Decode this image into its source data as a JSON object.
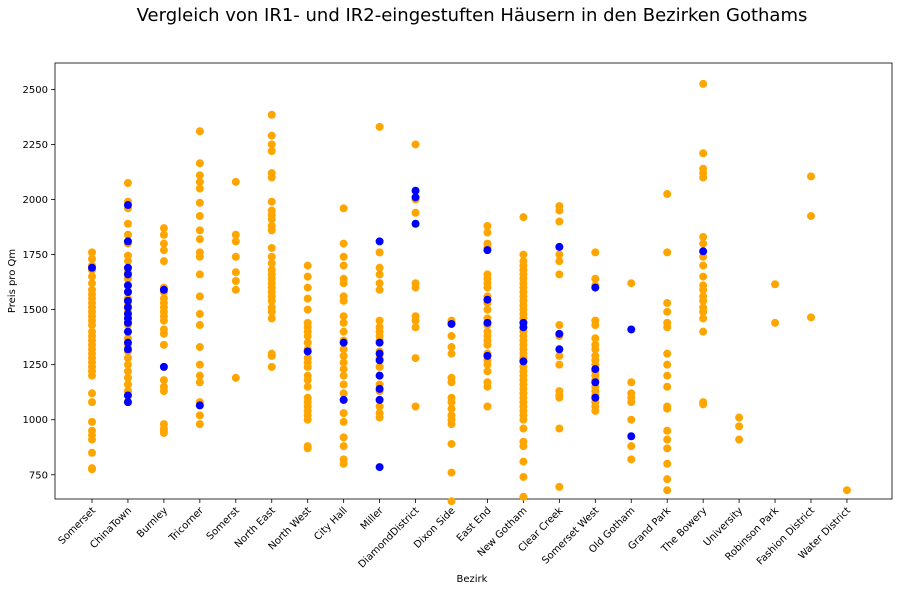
{
  "chart_data": {
    "type": "scatter",
    "title": "Vergleich von IR1- und IR2-eingestuften Häusern in den Bezirken Gothams",
    "xlabel": "Bezirk",
    "ylabel": "Preis pro Qm",
    "ylim": [
      640,
      2620
    ],
    "yticks": [
      750,
      1000,
      1250,
      1500,
      1750,
      2000,
      2250,
      2500
    ],
    "grid": false,
    "categories": [
      "Somerset",
      "ChinaTown",
      "Burnley",
      "Tricorner",
      "Somerst",
      "North East",
      "North West",
      "City Hall",
      "Miller",
      "DiamondDistrict",
      "Dixon Side",
      "East End",
      "New Gotham",
      "Clear Creek",
      "Somerset West",
      "Old Gotham",
      "Grand Park",
      "The Bowery",
      "University",
      "Robinson Park",
      "Fashion District",
      "Water District"
    ],
    "series": [
      {
        "name": "IR1",
        "color": "#ffa500",
        "points": [
          [
            "Somerset",
            [
              1760,
              1730,
              1700,
              1680,
              1650,
              1620,
              1590,
              1570,
              1550,
              1530,
              1510,
              1490,
              1470,
              1450,
              1430,
              1400,
              1380,
              1360,
              1340,
              1320,
              1300,
              1280,
              1260,
              1240,
              1220,
              1200,
              1120,
              1080,
              990,
              950,
              930,
              910,
              850,
              780,
              775
            ]
          ],
          [
            "ChinaTown",
            [
              2075,
              1990,
              1960,
              1890,
              1840,
              1800,
              1745,
              1720,
              1690,
              1670,
              1640,
              1610,
              1580,
              1550,
              1520,
              1490,
              1460,
              1430,
              1400,
              1370,
              1340,
              1310,
              1280,
              1250,
              1220,
              1190,
              1160,
              1130,
              1080
            ]
          ],
          [
            "Burnley",
            [
              1870,
              1840,
              1800,
              1770,
              1720,
              1600,
              1580,
              1550,
              1530,
              1510,
              1490,
              1470,
              1450,
              1410,
              1390,
              1340,
              1180,
              1150,
              1130,
              980,
              960,
              950,
              940
            ]
          ],
          [
            "Tricorner",
            [
              2310,
              2165,
              2110,
              2080,
              2050,
              1985,
              1925,
              1860,
              1820,
              1760,
              1740,
              1660,
              1560,
              1480,
              1430,
              1330,
              1250,
              1200,
              1170,
              1080,
              1020,
              980
            ]
          ],
          [
            "Somerst",
            [
              2080,
              1840,
              1810,
              1740,
              1670,
              1630,
              1590,
              1190
            ]
          ],
          [
            "North East",
            [
              2385,
              2290,
              2250,
              2220,
              2120,
              2100,
              1990,
              1950,
              1930,
              1910,
              1880,
              1860,
              1780,
              1740,
              1710,
              1680,
              1660,
              1640,
              1620,
              1600,
              1580,
              1560,
              1540,
              1510,
              1490,
              1460,
              1300,
              1290,
              1240
            ]
          ],
          [
            "North West",
            [
              1700,
              1650,
              1600,
              1550,
              1500,
              1440,
              1420,
              1400,
              1380,
              1350,
              1320,
              1280,
              1260,
              1240,
              1200,
              1180,
              1150,
              1100,
              1080,
              1060,
              1040,
              1020,
              1000,
              880,
              870
            ]
          ],
          [
            "City Hall",
            [
              1960,
              1800,
              1740,
              1700,
              1640,
              1620,
              1560,
              1540,
              1470,
              1440,
              1400,
              1360,
              1320,
              1290,
              1260,
              1230,
              1200,
              1160,
              1120,
              1090,
              1030,
              990,
              920,
              880,
              820,
              800
            ]
          ],
          [
            "Miller",
            [
              2330,
              1760,
              1690,
              1660,
              1620,
              1590,
              1450,
              1420,
              1400,
              1380,
              1360,
              1310,
              1280,
              1240,
              1200,
              1160,
              1130,
              1090,
              1060,
              1030,
              1010
            ]
          ],
          [
            "DiamondDistrict",
            [
              2250,
              2000,
              1940,
              1620,
              1600,
              1470,
              1450,
              1420,
              1280,
              1060
            ]
          ],
          [
            "Dixon Side",
            [
              1450,
              1440,
              1380,
              1330,
              1300,
              1190,
              1170,
              1100,
              1080,
              1050,
              1020,
              1000,
              980,
              890,
              760,
              630
            ]
          ],
          [
            "East End",
            [
              1880,
              1850,
              1800,
              1780,
              1660,
              1640,
              1620,
              1600,
              1560,
              1530,
              1500,
              1460,
              1430,
              1400,
              1380,
              1360,
              1340,
              1300,
              1270,
              1250,
              1220,
              1170,
              1150,
              1060
            ]
          ],
          [
            "New Gotham",
            [
              1920,
              1750,
              1720,
              1700,
              1680,
              1660,
              1640,
              1620,
              1600,
              1580,
              1560,
              1540,
              1520,
              1500,
              1480,
              1460,
              1440,
              1400,
              1380,
              1360,
              1340,
              1320,
              1300,
              1280,
              1240,
              1220,
              1200,
              1180,
              1160,
              1140,
              1120,
              1100,
              1080,
              1060,
              1040,
              1020,
              1000,
              960,
              900,
              880,
              810,
              740,
              650
            ]
          ],
          [
            "Clear Creek",
            [
              1970,
              1950,
              1900,
              1750,
              1720,
              1660,
              1430,
              1380,
              1290,
              1250,
              1130,
              1110,
              1100,
              960,
              695
            ]
          ],
          [
            "Somerset West",
            [
              1760,
              1640,
              1610,
              1450,
              1430,
              1370,
              1340,
              1320,
              1290,
              1270,
              1250,
              1220,
              1200,
              1180,
              1150,
              1130,
              1110,
              1080,
              1060,
              1040
            ]
          ],
          [
            "Old Gotham",
            [
              1620,
              1170,
              1120,
              1100,
              1080,
              1000,
              880,
              820
            ]
          ],
          [
            "Grand Park",
            [
              2025,
              1760,
              1530,
              1490,
              1440,
              1420,
              1300,
              1250,
              1200,
              1150,
              1060,
              1050,
              950,
              910,
              870,
              800,
              730,
              680
            ]
          ],
          [
            "The Bowery",
            [
              2525,
              2210,
              2140,
              2120,
              2100,
              1830,
              1800,
              1740,
              1700,
              1650,
              1610,
              1590,
              1560,
              1540,
              1510,
              1490,
              1460,
              1400,
              1080,
              1070
            ]
          ],
          [
            "University",
            [
              1010,
              970,
              910
            ]
          ],
          [
            "Robinson Park",
            [
              1615,
              1440
            ]
          ],
          [
            "Fashion District",
            [
              2105,
              1925,
              1465
            ]
          ],
          [
            "Water District",
            [
              680
            ]
          ]
        ]
      },
      {
        "name": "IR2",
        "color": "#0000ff",
        "points": [
          [
            "Somerset",
            [
              1690
            ]
          ],
          [
            "ChinaTown",
            [
              1975,
              1810,
              1690,
              1660,
              1610,
              1580,
              1540,
              1510,
              1480,
              1460,
              1440,
              1400,
              1350,
              1320,
              1110,
              1080
            ]
          ],
          [
            "Burnley",
            [
              1590,
              1240
            ]
          ],
          [
            "Tricorner",
            [
              1065
            ]
          ],
          [
            "North West",
            [
              1310
            ]
          ],
          [
            "City Hall",
            [
              1350,
              1090
            ]
          ],
          [
            "Miller",
            [
              1810,
              1350,
              1300,
              1270,
              1200,
              1140,
              1090,
              785
            ]
          ],
          [
            "DiamondDistrict",
            [
              2040,
              2010,
              1890
            ]
          ],
          [
            "Dixon Side",
            [
              1435
            ]
          ],
          [
            "East End",
            [
              1770,
              1545,
              1440,
              1290
            ]
          ],
          [
            "New Gotham",
            [
              1440,
              1420,
              1265
            ]
          ],
          [
            "Clear Creek",
            [
              1785,
              1390,
              1320
            ]
          ],
          [
            "Somerset West",
            [
              1600,
              1230,
              1170,
              1100
            ]
          ],
          [
            "Old Gotham",
            [
              1410,
              925
            ]
          ],
          [
            "The Bowery",
            [
              1765
            ]
          ]
        ]
      }
    ]
  }
}
